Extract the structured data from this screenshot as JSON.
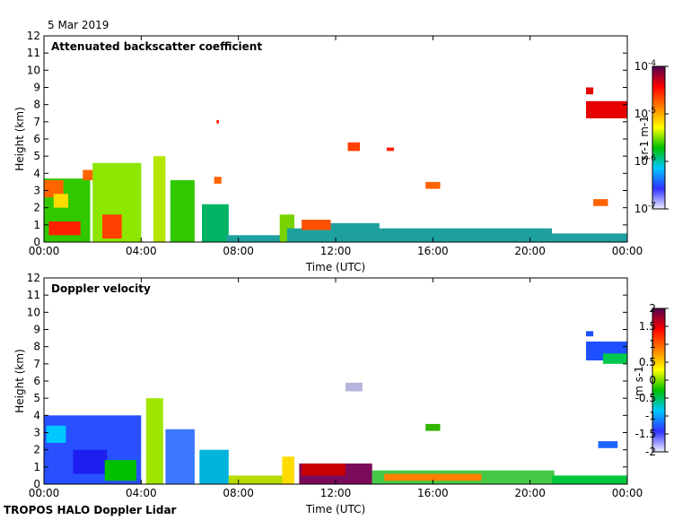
{
  "date_label": "5 Mar 2019",
  "footer_label": "TROPOS HALO Doppler Lidar",
  "chart_data": [
    {
      "type": "heatmap",
      "title": "Attenuated backscatter coefficient",
      "xlabel": "Time (UTC)",
      "ylabel": "Height (km)",
      "x_ticks": [
        "00:00",
        "04:00",
        "08:00",
        "12:00",
        "16:00",
        "20:00",
        "00:00"
      ],
      "xlim_hours": [
        0,
        24
      ],
      "y_ticks": [
        0,
        1,
        2,
        3,
        4,
        5,
        6,
        7,
        8,
        9,
        10,
        11,
        12
      ],
      "ylim": [
        0,
        12
      ],
      "colorbar": {
        "label": "sr-1 m-1",
        "scale": "log",
        "range": [
          1e-07,
          0.0001
        ],
        "tick_labels": [
          "10-7",
          "10-6",
          "10-5",
          "10-4"
        ],
        "colormap": [
          "#f0f0ff",
          "#3030ff",
          "#00c8ff",
          "#00c000",
          "#ffff00",
          "#ff8000",
          "#ff0000",
          "#500050"
        ]
      },
      "regions": [
        {
          "t0": 0.0,
          "t1": 1.9,
          "h0": 0.0,
          "h1": 3.7,
          "color": "#32c800"
        },
        {
          "t0": 0.0,
          "t1": 0.8,
          "h0": 2.6,
          "h1": 3.6,
          "color": "#ff6400"
        },
        {
          "t0": 0.2,
          "t1": 1.5,
          "h0": 0.4,
          "h1": 1.2,
          "color": "#ff2000"
        },
        {
          "t0": 0.4,
          "t1": 1.0,
          "h0": 2.0,
          "h1": 2.8,
          "color": "#ffdc00"
        },
        {
          "t0": 1.6,
          "t1": 2.4,
          "h0": 3.6,
          "h1": 4.2,
          "color": "#ff6400"
        },
        {
          "t0": 2.0,
          "t1": 4.0,
          "h0": 0.0,
          "h1": 4.6,
          "color": "#8ce600"
        },
        {
          "t0": 2.4,
          "t1": 3.2,
          "h0": 0.2,
          "h1": 1.6,
          "color": "#ff4000"
        },
        {
          "t0": 4.5,
          "t1": 5.0,
          "h0": 0.0,
          "h1": 5.0,
          "color": "#b4e600"
        },
        {
          "t0": 5.2,
          "t1": 6.2,
          "h0": 0.0,
          "h1": 3.6,
          "color": "#32c800"
        },
        {
          "t0": 6.5,
          "t1": 7.6,
          "h0": 0.0,
          "h1": 2.2,
          "color": "#00b464"
        },
        {
          "t0": 7.0,
          "t1": 7.3,
          "h0": 3.4,
          "h1": 3.8,
          "color": "#ff6400"
        },
        {
          "t0": 7.5,
          "t1": 10.0,
          "h0": 0.0,
          "h1": 0.4,
          "color": "#1ea0a0"
        },
        {
          "t0": 9.7,
          "t1": 10.3,
          "h0": 0.0,
          "h1": 1.6,
          "color": "#78d200"
        },
        {
          "t0": 10.0,
          "t1": 20.9,
          "h0": 0.0,
          "h1": 0.8,
          "color": "#1ea0a0"
        },
        {
          "t0": 10.6,
          "t1": 11.8,
          "h0": 0.7,
          "h1": 1.3,
          "color": "#ff5000"
        },
        {
          "t0": 11.8,
          "t1": 13.8,
          "h0": 0.3,
          "h1": 1.1,
          "color": "#1ea0a0"
        },
        {
          "t0": 12.5,
          "t1": 13.0,
          "h0": 5.3,
          "h1": 5.8,
          "color": "#ff4000"
        },
        {
          "t0": 15.7,
          "t1": 16.3,
          "h0": 3.1,
          "h1": 3.5,
          "color": "#ff6400"
        },
        {
          "t0": 20.9,
          "t1": 24.0,
          "h0": 0.0,
          "h1": 0.5,
          "color": "#1ea0a0"
        },
        {
          "t0": 22.6,
          "t1": 23.2,
          "h0": 2.1,
          "h1": 2.5,
          "color": "#ff6400"
        },
        {
          "t0": 22.3,
          "t1": 24.0,
          "h0": 7.2,
          "h1": 8.2,
          "color": "#e60000"
        },
        {
          "t0": 22.3,
          "t1": 22.6,
          "h0": 8.6,
          "h1": 9.0,
          "color": "#e60000"
        },
        {
          "t0": 7.1,
          "t1": 7.2,
          "h0": 6.9,
          "h1": 7.1,
          "color": "#ff2000"
        },
        {
          "t0": 14.1,
          "t1": 14.4,
          "h0": 5.3,
          "h1": 5.5,
          "color": "#ff2000"
        }
      ]
    },
    {
      "type": "heatmap",
      "title": "Doppler velocity",
      "xlabel": "Time (UTC)",
      "ylabel": "Height (km)",
      "x_ticks": [
        "00:00",
        "04:00",
        "08:00",
        "12:00",
        "16:00",
        "20:00",
        "00:00"
      ],
      "xlim_hours": [
        0,
        24
      ],
      "y_ticks": [
        0,
        1,
        2,
        3,
        4,
        5,
        6,
        7,
        8,
        9,
        10,
        11,
        12
      ],
      "ylim": [
        0,
        12
      ],
      "colorbar": {
        "label": "m s-1",
        "scale": "linear",
        "range": [
          -2,
          2
        ],
        "tick_labels": [
          "-2",
          "-1.5",
          "-1",
          "-0.5",
          "0",
          "0.5",
          "1",
          "1.5",
          "2"
        ],
        "colormap": [
          "#f0f0ff",
          "#3030ff",
          "#00c8ff",
          "#00c000",
          "#ffff00",
          "#ff8000",
          "#ff0000",
          "#500050"
        ]
      },
      "regions": [
        {
          "t0": 0.0,
          "t1": 4.0,
          "h0": 0.0,
          "h1": 4.0,
          "color": "#2850ff"
        },
        {
          "t0": 0.1,
          "t1": 0.9,
          "h0": 2.4,
          "h1": 3.4,
          "color": "#00c8ff"
        },
        {
          "t0": 1.2,
          "t1": 2.6,
          "h0": 0.6,
          "h1": 2.0,
          "color": "#1e1ef0"
        },
        {
          "t0": 2.5,
          "t1": 3.8,
          "h0": 0.2,
          "h1": 1.4,
          "color": "#00c000"
        },
        {
          "t0": 4.2,
          "t1": 4.9,
          "h0": 0.0,
          "h1": 5.0,
          "color": "#a0e600"
        },
        {
          "t0": 5.0,
          "t1": 6.2,
          "h0": 0.0,
          "h1": 3.2,
          "color": "#3c78ff"
        },
        {
          "t0": 6.4,
          "t1": 7.6,
          "h0": 0.0,
          "h1": 2.0,
          "color": "#00b4dc"
        },
        {
          "t0": 7.6,
          "t1": 10.2,
          "h0": 0.0,
          "h1": 0.5,
          "color": "#b4dc00"
        },
        {
          "t0": 9.8,
          "t1": 10.3,
          "h0": 0.0,
          "h1": 1.6,
          "color": "#ffdc00"
        },
        {
          "t0": 10.5,
          "t1": 13.5,
          "h0": 0.0,
          "h1": 1.2,
          "color": "#7a0a5a"
        },
        {
          "t0": 10.6,
          "t1": 12.4,
          "h0": 0.5,
          "h1": 1.2,
          "color": "#c80000"
        },
        {
          "t0": 13.5,
          "t1": 21.0,
          "h0": 0.0,
          "h1": 0.8,
          "color": "#46c846"
        },
        {
          "t0": 14.0,
          "t1": 18.0,
          "h0": 0.2,
          "h1": 0.6,
          "color": "#ff8000"
        },
        {
          "t0": 12.4,
          "t1": 13.1,
          "h0": 5.4,
          "h1": 5.9,
          "color": "#b4b4dc"
        },
        {
          "t0": 15.7,
          "t1": 16.3,
          "h0": 3.1,
          "h1": 3.5,
          "color": "#32b400"
        },
        {
          "t0": 20.9,
          "t1": 24.0,
          "h0": 0.0,
          "h1": 0.5,
          "color": "#00c83c"
        },
        {
          "t0": 22.8,
          "t1": 23.6,
          "h0": 2.1,
          "h1": 2.5,
          "color": "#1e64ff"
        },
        {
          "t0": 22.3,
          "t1": 24.0,
          "h0": 7.2,
          "h1": 8.3,
          "color": "#1e50ff"
        },
        {
          "t0": 23.0,
          "t1": 24.0,
          "h0": 7.0,
          "h1": 7.6,
          "color": "#00c850"
        },
        {
          "t0": 22.3,
          "t1": 22.6,
          "h0": 8.6,
          "h1": 8.9,
          "color": "#1e50ff"
        }
      ]
    }
  ]
}
